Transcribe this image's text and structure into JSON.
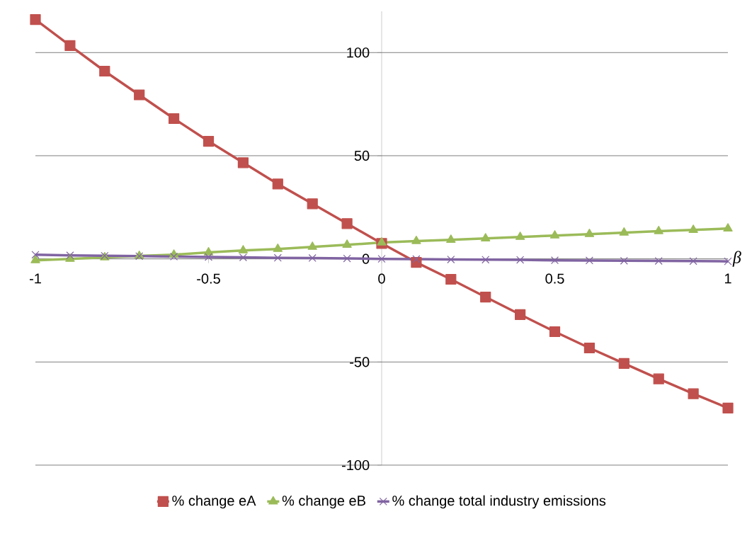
{
  "chart_data": {
    "type": "line",
    "xlabel": "β",
    "x": [
      -1,
      -0.9,
      -0.8,
      -0.7,
      -0.6,
      -0.5,
      -0.4,
      -0.3,
      -0.2,
      -0.1,
      0,
      0.1,
      0.2,
      0.3,
      0.4,
      0.5,
      0.6,
      0.7,
      0.8,
      0.9,
      1
    ],
    "series": [
      {
        "name": "% change eA",
        "color": "#c0504d",
        "marker": "square",
        "values": [
          116,
          103.4,
          91,
          79.5,
          68,
          57,
          46.6,
          36.3,
          26.7,
          17.1,
          7.5,
          -1.7,
          -9.9,
          -18.5,
          -27,
          -35.3,
          -43.2,
          -50.7,
          -58.2,
          -65.4,
          -72.3
        ]
      },
      {
        "name": "% change eB",
        "color": "#9bbb59",
        "marker": "triangle",
        "values": [
          -0.7,
          0,
          0.7,
          1.4,
          2,
          3.1,
          4.1,
          4.8,
          5.8,
          6.8,
          7.9,
          8.6,
          9.2,
          9.9,
          10.6,
          11.3,
          12,
          12.7,
          13.4,
          14,
          14.7
        ]
      },
      {
        "name": "% change total industry emissions",
        "color": "#8064a2",
        "marker": "cross",
        "values": [
          2,
          1.7,
          1.5,
          1.3,
          1.1,
          0.9,
          0.7,
          0.5,
          0.4,
          0.2,
          0,
          -0.1,
          -0.3,
          -0.4,
          -0.5,
          -0.7,
          -0.8,
          -0.9,
          -1,
          -1.1,
          -1.2
        ]
      }
    ],
    "xlim": [
      -1,
      1
    ],
    "ylim": [
      -100,
      120
    ],
    "xticks": [
      -1,
      -0.5,
      0,
      0.5,
      1
    ],
    "yticks": [
      -100,
      -50,
      0,
      50,
      100
    ],
    "grid": "y",
    "legend": "bottom",
    "line_style": "solid"
  }
}
